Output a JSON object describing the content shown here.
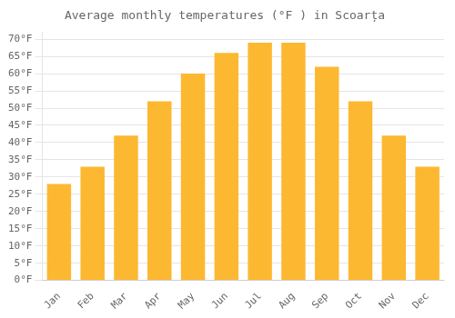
{
  "chart_data": {
    "type": "bar",
    "title": "Average monthly temperatures (°F ) in Scoarța",
    "categories": [
      "Jan",
      "Feb",
      "Mar",
      "Apr",
      "May",
      "Jun",
      "Jul",
      "Aug",
      "Sep",
      "Oct",
      "Nov",
      "Dec"
    ],
    "values": [
      28,
      33,
      42,
      52,
      60,
      66,
      69,
      69,
      62,
      52,
      42,
      33
    ],
    "color": "#FDB831",
    "ylim": [
      0,
      72
    ],
    "yticks": [
      {
        "value": 0,
        "label": "0°F"
      },
      {
        "value": 5,
        "label": "5°F"
      },
      {
        "value": 10,
        "label": "10°F"
      },
      {
        "value": 15,
        "label": "15°F"
      },
      {
        "value": 20,
        "label": "20°F"
      },
      {
        "value": 25,
        "label": "25°F"
      },
      {
        "value": 30,
        "label": "30°F"
      },
      {
        "value": 35,
        "label": "35°F"
      },
      {
        "value": 40,
        "label": "40°F"
      },
      {
        "value": 45,
        "label": "45°F"
      },
      {
        "value": 50,
        "label": "50°F"
      },
      {
        "value": 55,
        "label": "55°F"
      },
      {
        "value": 60,
        "label": "60°F"
      },
      {
        "value": 65,
        "label": "65°F"
      },
      {
        "value": 70,
        "label": "70°F"
      }
    ],
    "grid": true
  }
}
